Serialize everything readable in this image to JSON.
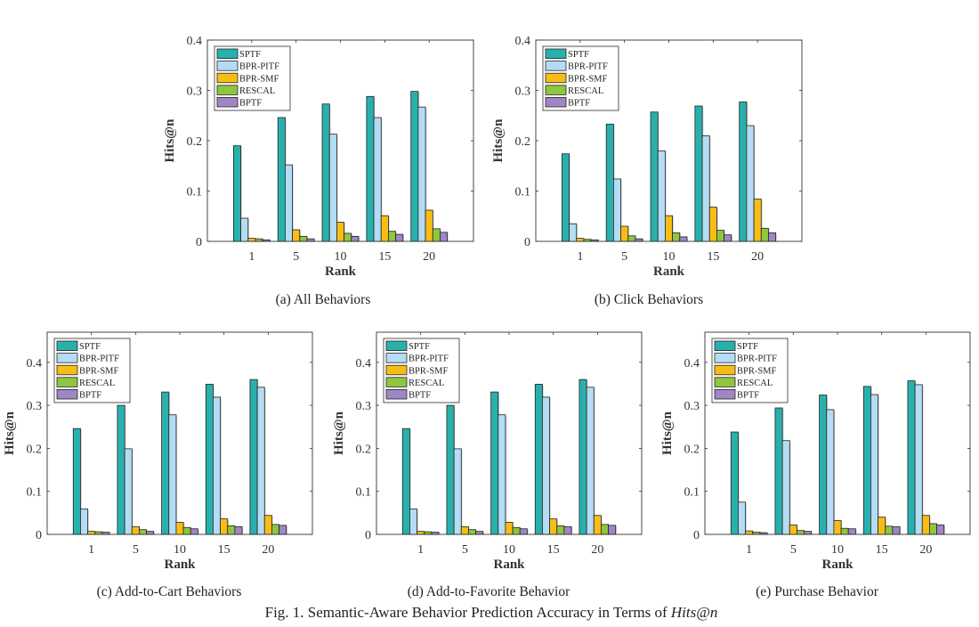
{
  "figure": {
    "title_prefix": "Fig. 1.  Semantic-Aware Behavior Prediction Accuracy in Terms of ",
    "title_math": "Hits@n"
  },
  "colors": {
    "SPTF": "#2ab0ac",
    "BPR-PITF": "#b4dcf4",
    "BPR-SMF": "#f7bd16",
    "RESCAL": "#8ec63f",
    "BPTF": "#9f86c4"
  },
  "chart_data": [
    {
      "id": "a",
      "type": "bar",
      "caption": "(a) All Behaviors",
      "xlabel": "Rank",
      "ylabel": "Hits@n",
      "categories": [
        "1",
        "5",
        "10",
        "15",
        "20"
      ],
      "yticks": [
        "0",
        "0.1",
        "0.2",
        "0.3",
        "0.4"
      ],
      "ytick_values": [
        0,
        0.1,
        0.2,
        0.3,
        0.4
      ],
      "ylim": [
        0,
        0.4
      ],
      "grid": false,
      "legend": "top-left",
      "series": [
        {
          "name": "SPTF",
          "values": [
            0.19,
            0.246,
            0.273,
            0.288,
            0.298
          ]
        },
        {
          "name": "BPR-PITF",
          "values": [
            0.046,
            0.152,
            0.213,
            0.246,
            0.267
          ]
        },
        {
          "name": "BPR-SMF",
          "values": [
            0.006,
            0.023,
            0.038,
            0.051,
            0.062
          ]
        },
        {
          "name": "RESCAL",
          "values": [
            0.005,
            0.01,
            0.016,
            0.02,
            0.025
          ]
        },
        {
          "name": "BPTF",
          "values": [
            0.003,
            0.005,
            0.01,
            0.014,
            0.018
          ]
        }
      ]
    },
    {
      "id": "b",
      "type": "bar",
      "caption": "(b) Click Behaviors",
      "xlabel": "Rank",
      "ylabel": "Hits@n",
      "categories": [
        "1",
        "5",
        "10",
        "15",
        "20"
      ],
      "yticks": [
        "0",
        "0.1",
        "0.2",
        "0.3",
        "0.4"
      ],
      "ytick_values": [
        0,
        0.1,
        0.2,
        0.3,
        0.4
      ],
      "ylim": [
        0,
        0.4
      ],
      "grid": false,
      "legend": "top-left",
      "series": [
        {
          "name": "SPTF",
          "values": [
            0.174,
            0.233,
            0.257,
            0.269,
            0.277
          ]
        },
        {
          "name": "BPR-PITF",
          "values": [
            0.035,
            0.124,
            0.18,
            0.21,
            0.23
          ]
        },
        {
          "name": "BPR-SMF",
          "values": [
            0.006,
            0.03,
            0.051,
            0.068,
            0.084
          ]
        },
        {
          "name": "RESCAL",
          "values": [
            0.004,
            0.011,
            0.017,
            0.022,
            0.026
          ]
        },
        {
          "name": "BPTF",
          "values": [
            0.003,
            0.005,
            0.009,
            0.013,
            0.017
          ]
        }
      ]
    },
    {
      "id": "c",
      "type": "bar",
      "caption": "(c) Add-to-Cart Behaviors",
      "xlabel": "Rank",
      "ylabel": "Hits@n",
      "categories": [
        "1",
        "5",
        "10",
        "15",
        "20"
      ],
      "yticks": [
        "0",
        "0.1",
        "0.2",
        "0.3",
        "0.4"
      ],
      "ytick_values": [
        0,
        0.1,
        0.2,
        0.3,
        0.4
      ],
      "ylim": [
        0,
        0.47
      ],
      "grid": false,
      "legend": "top-left",
      "series": [
        {
          "name": "SPTF",
          "values": [
            0.246,
            0.3,
            0.331,
            0.349,
            0.36
          ]
        },
        {
          "name": "BPR-PITF",
          "values": [
            0.059,
            0.199,
            0.278,
            0.319,
            0.342
          ]
        },
        {
          "name": "BPR-SMF",
          "values": [
            0.007,
            0.018,
            0.028,
            0.036,
            0.044
          ]
        },
        {
          "name": "RESCAL",
          "values": [
            0.006,
            0.011,
            0.016,
            0.02,
            0.023
          ]
        },
        {
          "name": "BPTF",
          "values": [
            0.005,
            0.007,
            0.013,
            0.018,
            0.021
          ]
        }
      ]
    },
    {
      "id": "d",
      "type": "bar",
      "caption": "(d) Add-to-Favorite Behavior",
      "xlabel": "Rank",
      "ylabel": "Hits@n",
      "categories": [
        "1",
        "5",
        "10",
        "15",
        "20"
      ],
      "yticks": [
        "0",
        "0.1",
        "0.2",
        "0.3",
        "0.4"
      ],
      "ytick_values": [
        0,
        0.1,
        0.2,
        0.3,
        0.4
      ],
      "ylim": [
        0,
        0.47
      ],
      "grid": false,
      "legend": "top-left",
      "series": [
        {
          "name": "SPTF",
          "values": [
            0.246,
            0.3,
            0.331,
            0.349,
            0.36
          ]
        },
        {
          "name": "BPR-PITF",
          "values": [
            0.059,
            0.199,
            0.278,
            0.319,
            0.342
          ]
        },
        {
          "name": "BPR-SMF",
          "values": [
            0.007,
            0.018,
            0.028,
            0.036,
            0.044
          ]
        },
        {
          "name": "RESCAL",
          "values": [
            0.006,
            0.011,
            0.016,
            0.02,
            0.023
          ]
        },
        {
          "name": "BPTF",
          "values": [
            0.005,
            0.007,
            0.013,
            0.018,
            0.021
          ]
        }
      ]
    },
    {
      "id": "e",
      "type": "bar",
      "caption": "(e) Purchase Behavior",
      "xlabel": "Rank",
      "ylabel": "Hits@n",
      "categories": [
        "1",
        "5",
        "10",
        "15",
        "20"
      ],
      "yticks": [
        "0",
        "0.1",
        "0.2",
        "0.3",
        "0.4"
      ],
      "ytick_values": [
        0,
        0.1,
        0.2,
        0.3,
        0.4
      ],
      "ylim": [
        0,
        0.47
      ],
      "grid": false,
      "legend": "top-left",
      "series": [
        {
          "name": "SPTF",
          "values": [
            0.238,
            0.294,
            0.324,
            0.344,
            0.357
          ]
        },
        {
          "name": "BPR-PITF",
          "values": [
            0.075,
            0.218,
            0.29,
            0.325,
            0.348
          ]
        },
        {
          "name": "BPR-SMF",
          "values": [
            0.008,
            0.022,
            0.032,
            0.04,
            0.044
          ]
        },
        {
          "name": "RESCAL",
          "values": [
            0.005,
            0.009,
            0.014,
            0.019,
            0.025
          ]
        },
        {
          "name": "BPTF",
          "values": [
            0.004,
            0.007,
            0.013,
            0.018,
            0.022
          ]
        }
      ]
    }
  ]
}
